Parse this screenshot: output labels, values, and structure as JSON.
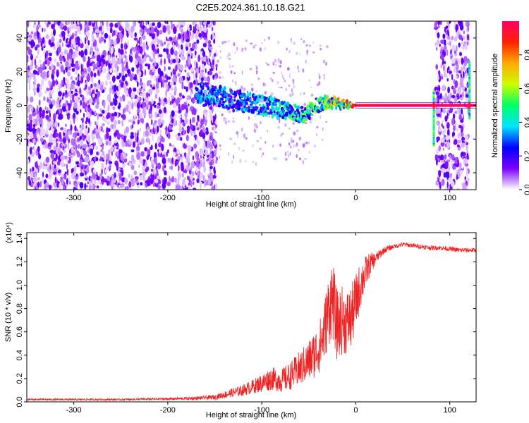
{
  "chart_data": [
    {
      "type": "heatmap",
      "title": "C2E5.2024.361.10.18.G21",
      "xlabel": "Height of straight line (km)",
      "ylabel": "Frequency (Hz)",
      "xlim": [
        -350,
        128
      ],
      "ylim": [
        -50,
        50
      ],
      "x_ticks": [
        -300,
        -200,
        -100,
        0,
        100
      ],
      "x_tick_labels": [
        "-300",
        "-200",
        "-100",
        "0",
        "100"
      ],
      "y_ticks": [
        -40,
        -20,
        0,
        20,
        40
      ],
      "y_tick_labels": [
        "-40",
        "-20",
        "0",
        "20",
        "40"
      ],
      "colorbar": {
        "label": "Normalized spectral amplitude",
        "range": [
          0,
          1
        ],
        "ticks": [
          0.0,
          0.2,
          0.4,
          0.6,
          0.8
        ],
        "tick_labels": [
          "0.0",
          "0.2",
          "0.4",
          "0.6",
          "0.8"
        ],
        "colors": [
          "#ffffff",
          "#7d00ff",
          "#0000ff",
          "#00e5ff",
          "#00ff66",
          "#ccff00",
          "#ffaa00",
          "#ff2200",
          "#ff0066"
        ]
      },
      "noise_regions": [
        [
          -350,
          -148
        ],
        [
          85,
          120
        ]
      ],
      "signal_track": [
        {
          "x": -170,
          "f": 7,
          "a": 0.3
        },
        {
          "x": -150,
          "f": 6,
          "a": 0.35
        },
        {
          "x": -130,
          "f": 3,
          "a": 0.3
        },
        {
          "x": -110,
          "f": 1,
          "a": 0.35
        },
        {
          "x": -90,
          "f": -1,
          "a": 0.4
        },
        {
          "x": -70,
          "f": -4,
          "a": 0.45
        },
        {
          "x": -55,
          "f": -6,
          "a": 0.5
        },
        {
          "x": -42,
          "f": 0,
          "a": 0.55
        },
        {
          "x": -30,
          "f": 2,
          "a": 0.6
        },
        {
          "x": -15,
          "f": 1,
          "a": 0.7
        },
        {
          "x": 0,
          "f": 0,
          "a": 0.95
        },
        {
          "x": 40,
          "f": 0,
          "a": 1.0
        },
        {
          "x": 82,
          "f": 0,
          "a": 1.0
        },
        {
          "x": 128,
          "f": 0,
          "a": 1.0
        }
      ]
    },
    {
      "type": "line",
      "xlabel": "Height of straight line (km)",
      "ylabel": "SNR (10 * v/v)",
      "y_multiplier": "(x10⁴)",
      "xlim": [
        -350,
        128
      ],
      "ylim": [
        0,
        1.45
      ],
      "x_ticks": [
        -300,
        -200,
        -100,
        0,
        100
      ],
      "x_tick_labels": [
        "-300",
        "-200",
        "-100",
        "0",
        "100"
      ],
      "y_ticks": [
        0.0,
        0.2,
        0.4,
        0.6,
        0.8,
        1.0,
        1.2,
        1.4
      ],
      "y_tick_labels": [
        "0.0",
        "0.2",
        "0.4",
        "0.6",
        "0.8",
        "1.0",
        "1.2",
        "1.4"
      ],
      "color": "#ee2222",
      "series": [
        {
          "x": [
            -350,
            -300,
            -250,
            -200,
            -170,
            -150,
            -140,
            -130,
            -120,
            -110,
            -100,
            -90,
            -80,
            -70,
            -60,
            -50,
            -40,
            -35,
            -30,
            -25,
            -20,
            -15,
            -10,
            -5,
            0,
            5,
            10,
            15,
            20,
            25,
            30,
            40,
            50,
            60,
            70,
            80,
            90,
            100,
            110,
            120,
            128
          ],
          "y": [
            0.02,
            0.02,
            0.02,
            0.025,
            0.03,
            0.04,
            0.06,
            0.08,
            0.1,
            0.13,
            0.16,
            0.2,
            0.18,
            0.22,
            0.28,
            0.35,
            0.45,
            0.55,
            0.75,
            0.9,
            0.65,
            0.7,
            0.68,
            0.72,
            0.85,
            1.0,
            1.1,
            1.18,
            1.22,
            1.26,
            1.3,
            1.33,
            1.35,
            1.34,
            1.33,
            1.32,
            1.32,
            1.31,
            1.3,
            1.3,
            1.3
          ],
          "noise": [
            0.008,
            0.008,
            0.008,
            0.01,
            0.015,
            0.02,
            0.03,
            0.04,
            0.05,
            0.06,
            0.08,
            0.1,
            0.1,
            0.12,
            0.15,
            0.18,
            0.22,
            0.25,
            0.3,
            0.35,
            0.3,
            0.3,
            0.28,
            0.28,
            0.25,
            0.2,
            0.15,
            0.1,
            0.06,
            0.04,
            0.03,
            0.02,
            0.02,
            0.02,
            0.02,
            0.02,
            0.02,
            0.02,
            0.02,
            0.02,
            0.02
          ]
        }
      ]
    }
  ]
}
